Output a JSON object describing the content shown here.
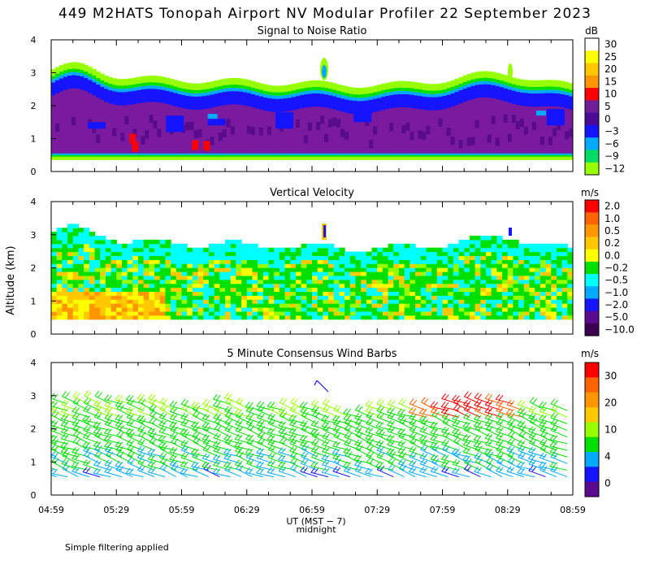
{
  "figure_title": "449 M2HATS Tonopah Airport NV Modular Profiler 22 September 2023",
  "y_axis_label": "Altitude (km)",
  "x_axis_label": "UT (MST − 7)",
  "x_axis_sublabel": "midnight",
  "footnote": "Simple filtering applied",
  "colors": {
    "white": "#ffffff",
    "yellow": "#ffff00",
    "gold": "#ffc800",
    "orange": "#ff9600",
    "dark_orange": "#ff6400",
    "red": "#ff0000",
    "purple": "#7a1a9e",
    "indigo": "#5a0a8c",
    "blue": "#1414ff",
    "light_blue": "#00aaff",
    "cyan": "#00ffff",
    "green": "#00e000",
    "light_green": "#96ff00",
    "dark_red": "#b40000",
    "dark_purple": "#3c0050"
  },
  "chart_data": [
    {
      "type": "heatmap",
      "title": "Signal to Noise Ratio",
      "xlabel": "UT (MST − 7)",
      "ylabel": "Altitude (km)",
      "x_ticks": [
        "04:59",
        "05:29",
        "05:59",
        "06:29",
        "06:59",
        "07:29",
        "07:59",
        "08:29",
        "08:59"
      ],
      "x_range_hours_after_0459": [
        0,
        4
      ],
      "ylim": [
        0,
        4
      ],
      "y_ticks": [
        0,
        1,
        2,
        3,
        4
      ],
      "colorbar_unit": "dB",
      "colorbar_labels": [
        "30",
        "25",
        "20",
        "15",
        "10",
        "5",
        "0",
        "−3",
        "−6",
        "−9",
        "−12"
      ],
      "colorbar_colors": [
        "#ffffff",
        "#ffff00",
        "#ffc800",
        "#ff9600",
        "#ff0000",
        "#6e1e96",
        "#4b0a96",
        "#1414ff",
        "#00aaff",
        "#00dc64",
        "#96ff00"
      ],
      "data_description": "SNR largely 0–5 dB (purple) between 0.5 and 2.3 km, decreasing through blue/cyan/green layers to the top of coverage near 2.5–3 km; isolated 10 dB (red) cells near 0.8 km; small plume near 3.2 km at 07:04."
    },
    {
      "type": "heatmap",
      "title": "Vertical Velocity",
      "xlabel": "UT (MST − 7)",
      "ylabel": "Altitude (km)",
      "x_ticks": [
        "04:59",
        "05:29",
        "05:59",
        "06:29",
        "06:59",
        "07:29",
        "07:59",
        "08:29",
        "08:59"
      ],
      "ylim": [
        0,
        4
      ],
      "y_ticks": [
        0,
        1,
        2,
        3,
        4
      ],
      "colorbar_unit": "m/s",
      "colorbar_labels": [
        "2.0",
        "1.0",
        "0.5",
        "0.2",
        "0.0",
        "−0.2",
        "−0.5",
        "−1.0",
        "−2.0",
        "−5.0",
        "−10.0"
      ],
      "colorbar_colors": [
        "#ff0000",
        "#ff6400",
        "#ff9600",
        "#ffc800",
        "#ffff00",
        "#00e000",
        "#00ffff",
        "#00aaff",
        "#1414ff",
        "#5a0a8c",
        "#3c0050"
      ],
      "data_description": "Mostly −0.2 to 0.2 m/s (green/yellow) up to ~2.5 km with cyan downdraft regions above; stronger updrafts (orange) near 0.5–1 km early in the period."
    },
    {
      "type": "scatter",
      "title": "5 Minute Consensus Wind Barbs",
      "xlabel": "UT (MST − 7)",
      "ylabel": "Altitude (km)",
      "x_ticks": [
        "04:59",
        "05:29",
        "05:59",
        "06:29",
        "06:59",
        "07:29",
        "07:59",
        "08:29",
        "08:59"
      ],
      "ylim": [
        0,
        4
      ],
      "y_ticks": [
        0,
        1,
        2,
        3,
        4
      ],
      "colorbar_unit": "m/s",
      "colorbar_labels": [
        "30",
        "20",
        "10",
        "4",
        "0"
      ],
      "colorbar_colors": [
        "#ff0000",
        "#ff6400",
        "#ff9600",
        "#ffc800",
        "#96ff00",
        "#00e000",
        "#00aaff",
        "#1414ff",
        "#5a0a8c"
      ],
      "data_description": "Wind barbs every 5 minutes from 0.5 to ~2.8 km; speeds 4–10 m/s (blue/cyan) below 1.2 km, 10–15 m/s (green) above, with 20–25 m/s (orange/red) barbs near 2.4–2.6 km after 07:50."
    }
  ]
}
